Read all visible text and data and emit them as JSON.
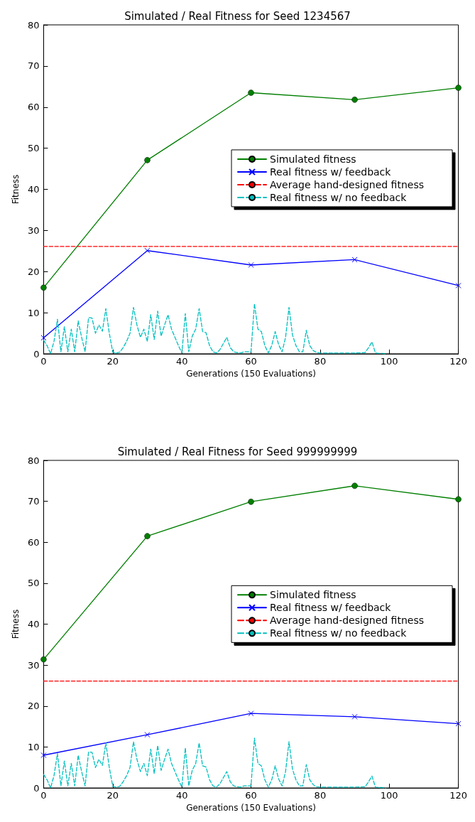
{
  "chart_data": [
    {
      "type": "line",
      "title": "Simulated / Real Fitness for Seed 1234567",
      "xlabel": "Generations (150 Evaluations)",
      "ylabel": "Fitness",
      "xlim": [
        0,
        120
      ],
      "xticks": [
        0,
        20,
        40,
        60,
        80,
        100,
        120
      ],
      "ylim": [
        0,
        80
      ],
      "yticks": [
        0,
        10,
        20,
        30,
        40,
        50,
        60,
        70,
        80
      ],
      "grid": false,
      "legend": "center right",
      "series": [
        {
          "name": "Simulated fitness",
          "color": "#007f00",
          "marker": "circle",
          "line_style": "solid",
          "x": [
            0,
            30,
            60,
            90,
            120
          ],
          "values": [
            16.1,
            47.1,
            63.5,
            61.8,
            64.7
          ]
        },
        {
          "name": "Real fitness w/ feedback",
          "color": "#0000ff",
          "marker": "cross",
          "line_style": "solid",
          "x": [
            0,
            30,
            60,
            90,
            120
          ],
          "values": [
            3.9,
            25.1,
            21.6,
            22.9,
            16.6
          ]
        },
        {
          "name": "Average hand-designed fitness",
          "color": "#ff0000",
          "marker": "none",
          "line_style": "dashed",
          "x": [
            0,
            120
          ],
          "values": [
            26.1,
            26.1
          ]
        },
        {
          "name": "Real fitness w/ no feedback",
          "color": "#00bfbf",
          "marker": "none",
          "line_style": "dashed",
          "x": [
            0,
            1,
            2,
            3,
            4,
            5,
            6,
            7,
            8,
            9,
            10,
            11,
            12,
            13,
            14,
            15,
            16,
            17,
            18,
            19,
            20,
            21,
            22,
            23,
            24,
            25,
            26,
            27,
            28,
            29,
            30,
            31,
            32,
            33,
            34,
            35,
            36,
            37,
            38,
            39,
            40,
            41,
            42,
            43,
            44,
            45,
            46,
            47,
            48,
            49,
            50,
            51,
            52,
            53,
            54,
            55,
            56,
            57,
            58,
            59,
            60,
            61,
            62,
            63,
            64,
            65,
            66,
            67,
            68,
            69,
            70,
            71,
            72,
            73,
            74,
            75,
            76,
            77,
            78,
            79,
            80,
            85,
            90,
            93,
            94,
            95,
            96,
            97,
            98,
            99
          ],
          "values": [
            3.3,
            2,
            0,
            3,
            8.4,
            0.5,
            6.6,
            0.5,
            6,
            0.5,
            8,
            4,
            0.5,
            8.8,
            8.7,
            5,
            7,
            5.5,
            11,
            5,
            0.4,
            0.2,
            0.4,
            1.5,
            3,
            5,
            11.3,
            7,
            4,
            6,
            3,
            9.5,
            3.5,
            10.4,
            4.3,
            7,
            9.5,
            6,
            4,
            2,
            0.2,
            9.8,
            0.5,
            4.3,
            6,
            11,
            5.4,
            5.1,
            2,
            0.5,
            0.2,
            1,
            2.5,
            4,
            1.5,
            0.5,
            0.3,
            0.2,
            0.5,
            0.5,
            0.5,
            12.2,
            6,
            5.4,
            2,
            0.2,
            2,
            5.4,
            2.2,
            0.5,
            4,
            11.3,
            4.6,
            2,
            0.5,
            0.5,
            5.7,
            2,
            0.8,
            0.3,
            0.2,
            0.2,
            0.2,
            0.3,
            1.5,
            2.9,
            0.2,
            0.1,
            0.1,
            0
          ]
        }
      ]
    },
    {
      "type": "line",
      "title": "Simulated / Real Fitness for Seed 999999999",
      "xlabel": "Generations (150 Evaluations)",
      "ylabel": "Fitness",
      "xlim": [
        0,
        120
      ],
      "xticks": [
        0,
        20,
        40,
        60,
        80,
        100,
        120
      ],
      "ylim": [
        0,
        80
      ],
      "yticks": [
        0,
        10,
        20,
        30,
        40,
        50,
        60,
        70,
        80
      ],
      "grid": false,
      "legend": "center right",
      "series": [
        {
          "name": "Simulated fitness",
          "color": "#007f00",
          "marker": "circle",
          "line_style": "solid",
          "x": [
            0,
            30,
            60,
            90,
            120
          ],
          "values": [
            31.4,
            61.5,
            69.9,
            73.8,
            70.5
          ]
        },
        {
          "name": "Real fitness w/ feedback",
          "color": "#0000ff",
          "marker": "cross",
          "line_style": "solid",
          "x": [
            0,
            30,
            60,
            90,
            120
          ],
          "values": [
            8.0,
            13.0,
            18.2,
            17.4,
            15.7
          ]
        },
        {
          "name": "Average hand-designed fitness",
          "color": "#ff0000",
          "marker": "none",
          "line_style": "dashed",
          "x": [
            0,
            120
          ],
          "values": [
            26.1,
            26.1
          ]
        },
        {
          "name": "Real fitness w/ no feedback",
          "color": "#00bfbf",
          "marker": "none",
          "line_style": "dashed",
          "x": [
            0,
            1,
            2,
            3,
            4,
            5,
            6,
            7,
            8,
            9,
            10,
            11,
            12,
            13,
            14,
            15,
            16,
            17,
            18,
            19,
            20,
            21,
            22,
            23,
            24,
            25,
            26,
            27,
            28,
            29,
            30,
            31,
            32,
            33,
            34,
            35,
            36,
            37,
            38,
            39,
            40,
            41,
            42,
            43,
            44,
            45,
            46,
            47,
            48,
            49,
            50,
            51,
            52,
            53,
            54,
            55,
            56,
            57,
            58,
            59,
            60,
            61,
            62,
            63,
            64,
            65,
            66,
            67,
            68,
            69,
            70,
            71,
            72,
            73,
            74,
            75,
            76,
            77,
            78,
            79,
            80,
            85,
            90,
            93,
            94,
            95,
            96,
            97,
            98,
            99
          ],
          "values": [
            3.3,
            2,
            0,
            3,
            8.4,
            0.5,
            6.6,
            0.5,
            6,
            0.5,
            8,
            4,
            0.5,
            8.8,
            8.7,
            5,
            7,
            5.5,
            11,
            5,
            0.4,
            0.2,
            0.4,
            1.5,
            3,
            5,
            11.3,
            7,
            4,
            6,
            3,
            9.5,
            3.5,
            10.4,
            4.3,
            7,
            9.5,
            6,
            4,
            2,
            0.2,
            9.8,
            0.5,
            4.3,
            6,
            11,
            5.4,
            5.1,
            2,
            0.5,
            0.2,
            1,
            2.5,
            4,
            1.5,
            0.5,
            0.3,
            0.2,
            0.5,
            0.5,
            0.5,
            12.2,
            6,
            5.4,
            2,
            0.2,
            2,
            5.4,
            2.2,
            0.5,
            4,
            11.3,
            4.6,
            2,
            0.5,
            0.5,
            5.7,
            2,
            0.8,
            0.3,
            0.2,
            0.2,
            0.2,
            0.3,
            1.5,
            2.9,
            0.2,
            0.1,
            0.1,
            0
          ]
        }
      ]
    }
  ]
}
